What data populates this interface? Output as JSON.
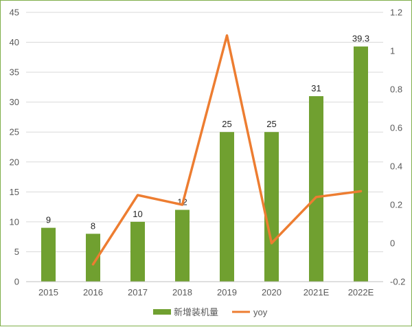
{
  "chart_data": {
    "type": "bar",
    "categories": [
      "2015",
      "2016",
      "2017",
      "2018",
      "2019",
      "2020",
      "2021E",
      "2022E"
    ],
    "series": [
      {
        "name": "新增装机量",
        "type": "bar",
        "axis": "left",
        "color": "#70a030",
        "values": [
          9,
          8,
          10,
          12,
          25,
          25,
          31,
          39.3
        ],
        "labels": [
          "9",
          "8",
          "10",
          "12",
          "25",
          "25",
          "31",
          "39.3"
        ]
      },
      {
        "name": "yoy",
        "type": "line",
        "axis": "right",
        "color": "#ed7d31",
        "values": [
          null,
          -0.11,
          0.25,
          0.2,
          1.08,
          0.0,
          0.24,
          0.27
        ]
      }
    ],
    "y_left": {
      "min": 0,
      "max": 45,
      "step": 5,
      "ticks": [
        "0",
        "5",
        "10",
        "15",
        "20",
        "25",
        "30",
        "35",
        "40",
        "45"
      ]
    },
    "y_right": {
      "min": -0.2,
      "max": 1.2,
      "step": 0.2,
      "ticks": [
        "-0.2",
        "0",
        "0.2",
        "0.4",
        "0.6",
        "0.8",
        "1",
        "1.2"
      ]
    },
    "grid": true,
    "legend": "bottom",
    "title": "",
    "xlabel": "",
    "ylabel": ""
  }
}
